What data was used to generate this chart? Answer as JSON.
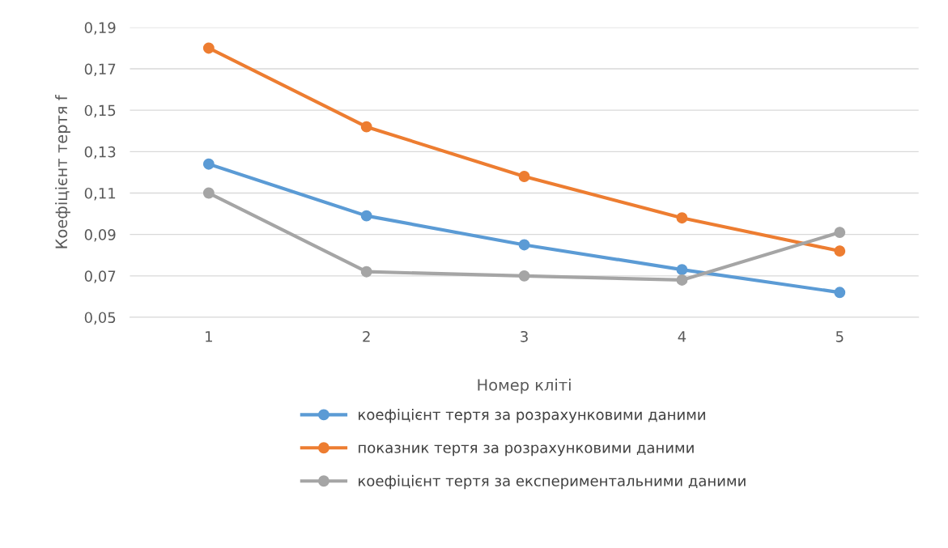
{
  "chart_data": {
    "type": "line",
    "xlabel": "Номер кліті",
    "ylabel": "Коефіцієнт тертя f",
    "categories": [
      "1",
      "2",
      "3",
      "4",
      "5"
    ],
    "series": [
      {
        "name": "коефіцієнт тертя за розрахунковими даними",
        "color": "#5b9bd5",
        "values": [
          0.124,
          0.099,
          0.085,
          0.073,
          0.062
        ]
      },
      {
        "name": "показник тертя за розрахунковими даними",
        "color": "#ed7d31",
        "values": [
          0.18,
          0.142,
          0.118,
          0.098,
          0.082
        ]
      },
      {
        "name": "коефіцієнт тертя за експериментальними даними",
        "color": "#a5a5a5",
        "values": [
          0.11,
          0.072,
          0.07,
          0.068,
          0.091
        ]
      }
    ],
    "ylim": [
      0.05,
      0.19
    ],
    "yticks": [
      {
        "value": 0.05,
        "label": "0,05"
      },
      {
        "value": 0.07,
        "label": "0,07"
      },
      {
        "value": 0.09,
        "label": "0,09"
      },
      {
        "value": 0.11,
        "label": "0,11"
      },
      {
        "value": 0.13,
        "label": "0,13"
      },
      {
        "value": 0.15,
        "label": "0,15"
      },
      {
        "value": 0.17,
        "label": "0,17"
      },
      {
        "value": 0.19,
        "label": "0,19"
      }
    ],
    "grid": "y",
    "legend": "bottom",
    "marker": "circle",
    "line_style": "solid"
  }
}
